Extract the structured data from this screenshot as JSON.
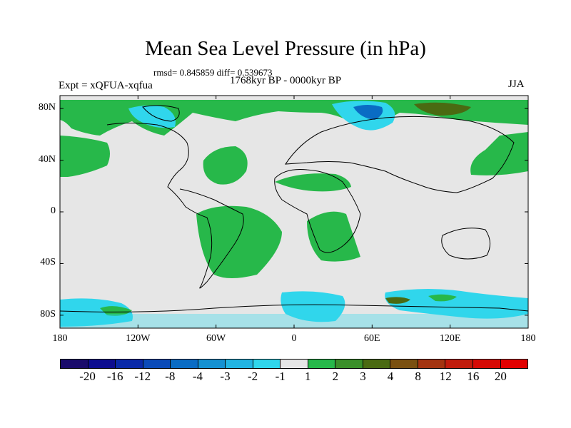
{
  "title": "Mean Sea Level Pressure (in hPa)",
  "stats": "rmsd= 0.845859 diff= 0.539673",
  "period": "1768kyr BP - 0000kyr BP",
  "experiment": "Expt = xQFUA-xqfua",
  "season": "JJA",
  "lat_labels": [
    "80N",
    "40N",
    "0",
    "40S",
    "80S"
  ],
  "lat_values": [
    80,
    40,
    0,
    -40,
    -80
  ],
  "lon_labels": [
    "180",
    "120W",
    "60W",
    "0",
    "60E",
    "120E",
    "180"
  ],
  "lon_values": [
    -180,
    -120,
    -60,
    0,
    60,
    120,
    180
  ],
  "colorbar": {
    "labels": [
      "-20",
      "-16",
      "-12",
      "-8",
      "-4",
      "-3",
      "-2",
      "-1",
      "1",
      "2",
      "3",
      "4",
      "8",
      "12",
      "16",
      "20"
    ],
    "colors": [
      "#1a0b6b",
      "#0d0d8f",
      "#0a2aa8",
      "#0b4bb8",
      "#0a6cc4",
      "#1591d2",
      "#22b4e2",
      "#30d6ec",
      "#e6e6e6",
      "#27b84a",
      "#3a8f2a",
      "#4a6a12",
      "#7a5010",
      "#a33410",
      "#c01c0c",
      "#d60a05",
      "#e10000"
    ]
  },
  "colors": {
    "background": "#e6e6e6",
    "positive_small": "#27b84a",
    "negative_small": "#30d6ec"
  }
}
